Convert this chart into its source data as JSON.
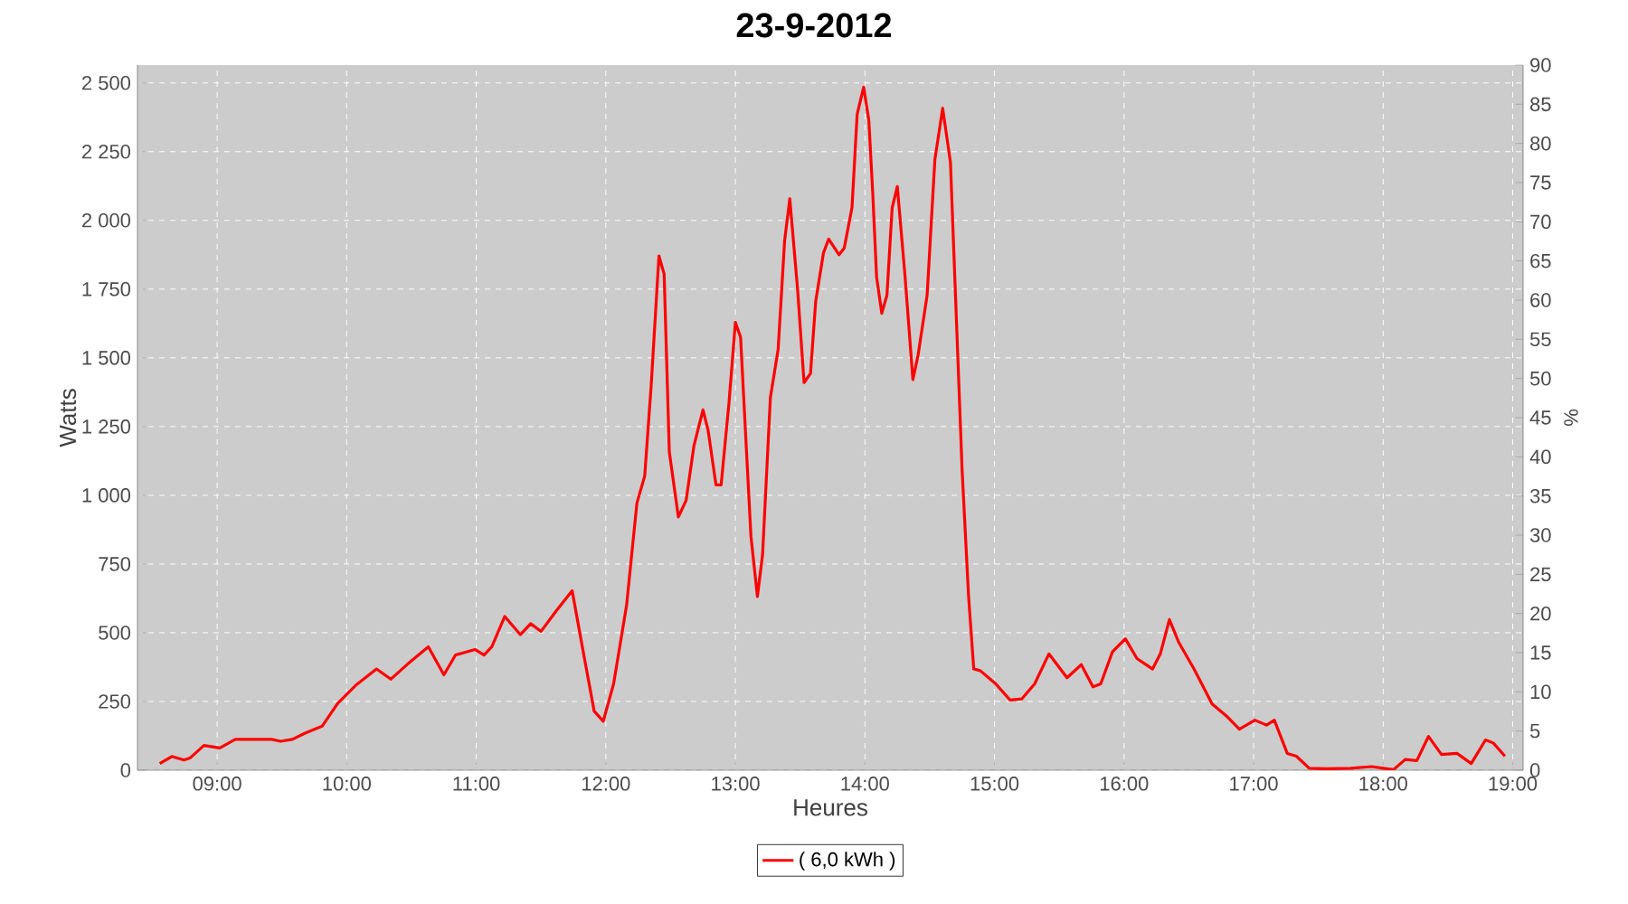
{
  "chart_data": {
    "type": "line",
    "title": "23-9-2012",
    "xlabel": "Heures",
    "ylabel": "Watts",
    "y2label": "%",
    "xlim": [
      8.385,
      19.08
    ],
    "xticks": [
      {
        "value": 9,
        "label": "09:00"
      },
      {
        "value": 10,
        "label": "10:00"
      },
      {
        "value": 11,
        "label": "11:00"
      },
      {
        "value": 12,
        "label": "12:00"
      },
      {
        "value": 13,
        "label": "13:00"
      },
      {
        "value": 14,
        "label": "14:00"
      },
      {
        "value": 15,
        "label": "15:00"
      },
      {
        "value": 16,
        "label": "16:00"
      },
      {
        "value": 17,
        "label": "17:00"
      },
      {
        "value": 18,
        "label": "18:00"
      },
      {
        "value": 19,
        "label": "19:00"
      }
    ],
    "ylim": [
      0,
      2565
    ],
    "yticks": [
      0,
      250,
      500,
      750,
      {
        "value": 1000,
        "label": "1 000"
      },
      {
        "value": 1250,
        "label": "1 250"
      },
      {
        "value": 1500,
        "label": "1 500"
      },
      {
        "value": 1750,
        "label": "1 750"
      },
      {
        "value": 2000,
        "label": "2 000"
      },
      {
        "value": 2250,
        "label": "2 250"
      },
      {
        "value": 2500,
        "label": "2 500"
      }
    ],
    "y2lim": [
      0,
      90
    ],
    "y2ticks": [
      0,
      5,
      10,
      15,
      20,
      25,
      30,
      35,
      40,
      45,
      50,
      55,
      60,
      65,
      70,
      75,
      80,
      85,
      90
    ],
    "grid": true,
    "legend": "bottom",
    "line_style": "solid",
    "series": [
      {
        "name": "( 6,0 kWh )",
        "color": "#ff0000",
        "x": [
          8.557,
          8.65,
          8.744,
          8.79,
          8.898,
          9.02,
          9.14,
          9.42,
          9.49,
          9.58,
          9.675,
          9.81,
          9.93,
          10.07,
          10.23,
          10.34,
          10.47,
          10.63,
          10.75,
          10.84,
          10.99,
          11.06,
          11.12,
          11.22,
          11.34,
          11.42,
          11.5,
          11.62,
          11.74,
          11.82,
          11.91,
          11.98,
          12.06,
          12.16,
          12.24,
          12.3,
          12.35,
          12.41,
          12.45,
          12.49,
          12.56,
          12.62,
          12.68,
          12.75,
          12.79,
          12.85,
          12.89,
          12.95,
          13.0,
          13.04,
          13.12,
          13.17,
          13.21,
          13.27,
          13.33,
          13.38,
          13.42,
          13.48,
          13.53,
          13.58,
          13.62,
          13.68,
          13.72,
          13.8,
          13.84,
          13.9,
          13.94,
          13.99,
          14.03,
          14.06,
          14.09,
          14.13,
          14.17,
          14.21,
          14.25,
          14.31,
          14.37,
          14.41,
          14.48,
          14.54,
          14.6,
          14.66,
          14.72,
          14.75,
          14.8,
          14.82,
          14.84,
          14.89,
          15.01,
          15.12,
          15.21,
          15.31,
          15.42,
          15.56,
          15.67,
          15.76,
          15.82,
          15.91,
          16.01,
          16.1,
          16.22,
          16.28,
          16.35,
          16.42,
          16.54,
          16.68,
          16.8,
          16.89,
          17.01,
          17.1,
          17.16,
          17.26,
          17.33,
          17.43,
          17.56,
          17.75,
          17.91,
          18.08,
          18.17,
          18.26,
          18.35,
          18.45,
          18.57,
          18.68,
          18.79,
          18.85,
          18.94
        ],
        "values": [
          24,
          50,
          37,
          44,
          90,
          81,
          112,
          112,
          105,
          112,
          134,
          160,
          243,
          309,
          368,
          331,
          386,
          449,
          347,
          419,
          439,
          419,
          449,
          559,
          493,
          533,
          505,
          581,
          653,
          445,
          215,
          178,
          314,
          599,
          972,
          1070,
          1399,
          1871,
          1805,
          1158,
          921,
          982,
          1180,
          1311,
          1235,
          1038,
          1038,
          1333,
          1629,
          1575,
          851,
          632,
          785,
          1355,
          1531,
          1926,
          2079,
          1750,
          1410,
          1443,
          1706,
          1882,
          1932,
          1875,
          1899,
          2046,
          2386,
          2485,
          2364,
          2101,
          1794,
          1662,
          1728,
          2046,
          2123,
          1794,
          1421,
          1509,
          1728,
          2222,
          2408,
          2211,
          1465,
          1092,
          632,
          500,
          368,
          362,
          314,
          255,
          259,
          314,
          423,
          336,
          384,
          303,
          314,
          430,
          478,
          406,
          368,
          423,
          548,
          467,
          368,
          241,
          193,
          149,
          182,
          164,
          182,
          61,
          51,
          7,
          5,
          7,
          13,
          2,
          39,
          35,
          123,
          57,
          61,
          24,
          110,
          99,
          51
        ]
      }
    ]
  }
}
